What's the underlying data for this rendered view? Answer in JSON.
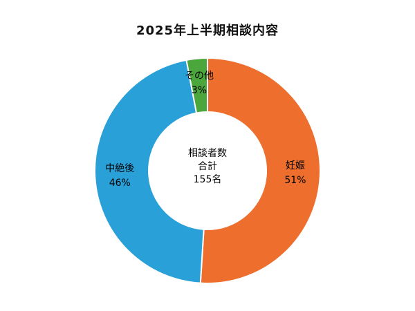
{
  "chart_data": {
    "type": "pie",
    "subtype": "donut",
    "title": "2025年上半期相談内容",
    "categories": [
      "妊娠",
      "中絶後",
      "その他"
    ],
    "values": [
      51,
      46,
      3
    ],
    "unit": "%",
    "colors": [
      "#ED6E2D",
      "#29A0D8",
      "#4BA63C"
    ],
    "start_angle_deg": 0,
    "direction": "clockwise",
    "inner_radius_ratio": 0.52,
    "legend": "none",
    "center_label": {
      "lines": [
        "相談者数",
        "合計",
        "155名"
      ]
    }
  }
}
